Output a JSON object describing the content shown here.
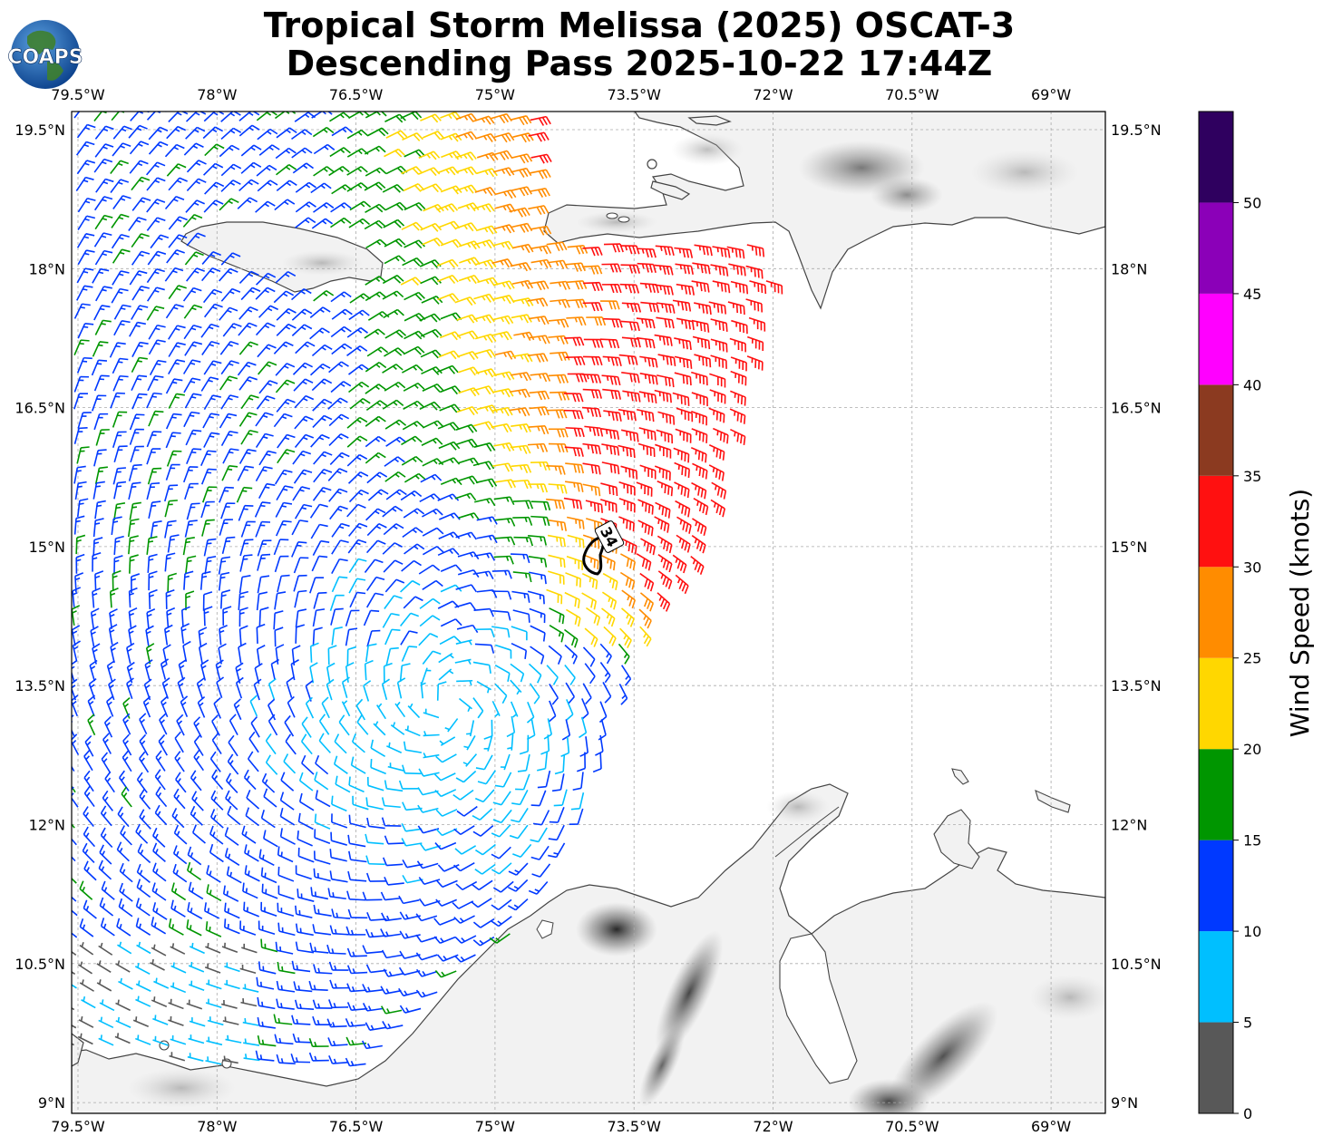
{
  "title_line1": "Tropical Storm Melissa (2025) OSCAT-3",
  "title_line2": "Descending Pass 2025-10-22 17:44Z",
  "logo_text": "COAPS",
  "lon_ticks": [
    "79.5°W",
    "78°W",
    "76.5°W",
    "75°W",
    "73.5°W",
    "72°W",
    "70.5°W",
    "69°W"
  ],
  "lat_ticks": [
    "19.5°N",
    "18°N",
    "16.5°N",
    "15°N",
    "13.5°N",
    "12°N",
    "10.5°N",
    "9°N"
  ],
  "colorbar": {
    "label": "Wind Speed (knots)",
    "tick_labels": [
      "0",
      "5",
      "10",
      "15",
      "20",
      "25",
      "30",
      "35",
      "40",
      "45",
      "50"
    ],
    "bins": [
      {
        "min": 0,
        "max": 5,
        "color": "#585858"
      },
      {
        "min": 5,
        "max": 10,
        "color": "#00bfff"
      },
      {
        "min": 10,
        "max": 15,
        "color": "#0039ff"
      },
      {
        "min": 15,
        "max": 20,
        "color": "#009600"
      },
      {
        "min": 20,
        "max": 25,
        "color": "#ffd700"
      },
      {
        "min": 25,
        "max": 30,
        "color": "#ff8c00"
      },
      {
        "min": 30,
        "max": 35,
        "color": "#ff1010"
      },
      {
        "min": 35,
        "max": 40,
        "color": "#8b3a20"
      },
      {
        "min": 40,
        "max": 45,
        "color": "#ff00ff"
      },
      {
        "min": 45,
        "max": 50,
        "color": "#8b00b8"
      },
      {
        "min": 50,
        "max": 55,
        "color": "#2f005f"
      }
    ]
  },
  "contour_label": "34",
  "storm_center": {
    "lon": -75.5,
    "lat": 13.3
  },
  "map_extent": {
    "lon_min": -79.6,
    "lon_max": -68.4,
    "lat_min": 8.9,
    "lat_max": 19.7
  }
}
